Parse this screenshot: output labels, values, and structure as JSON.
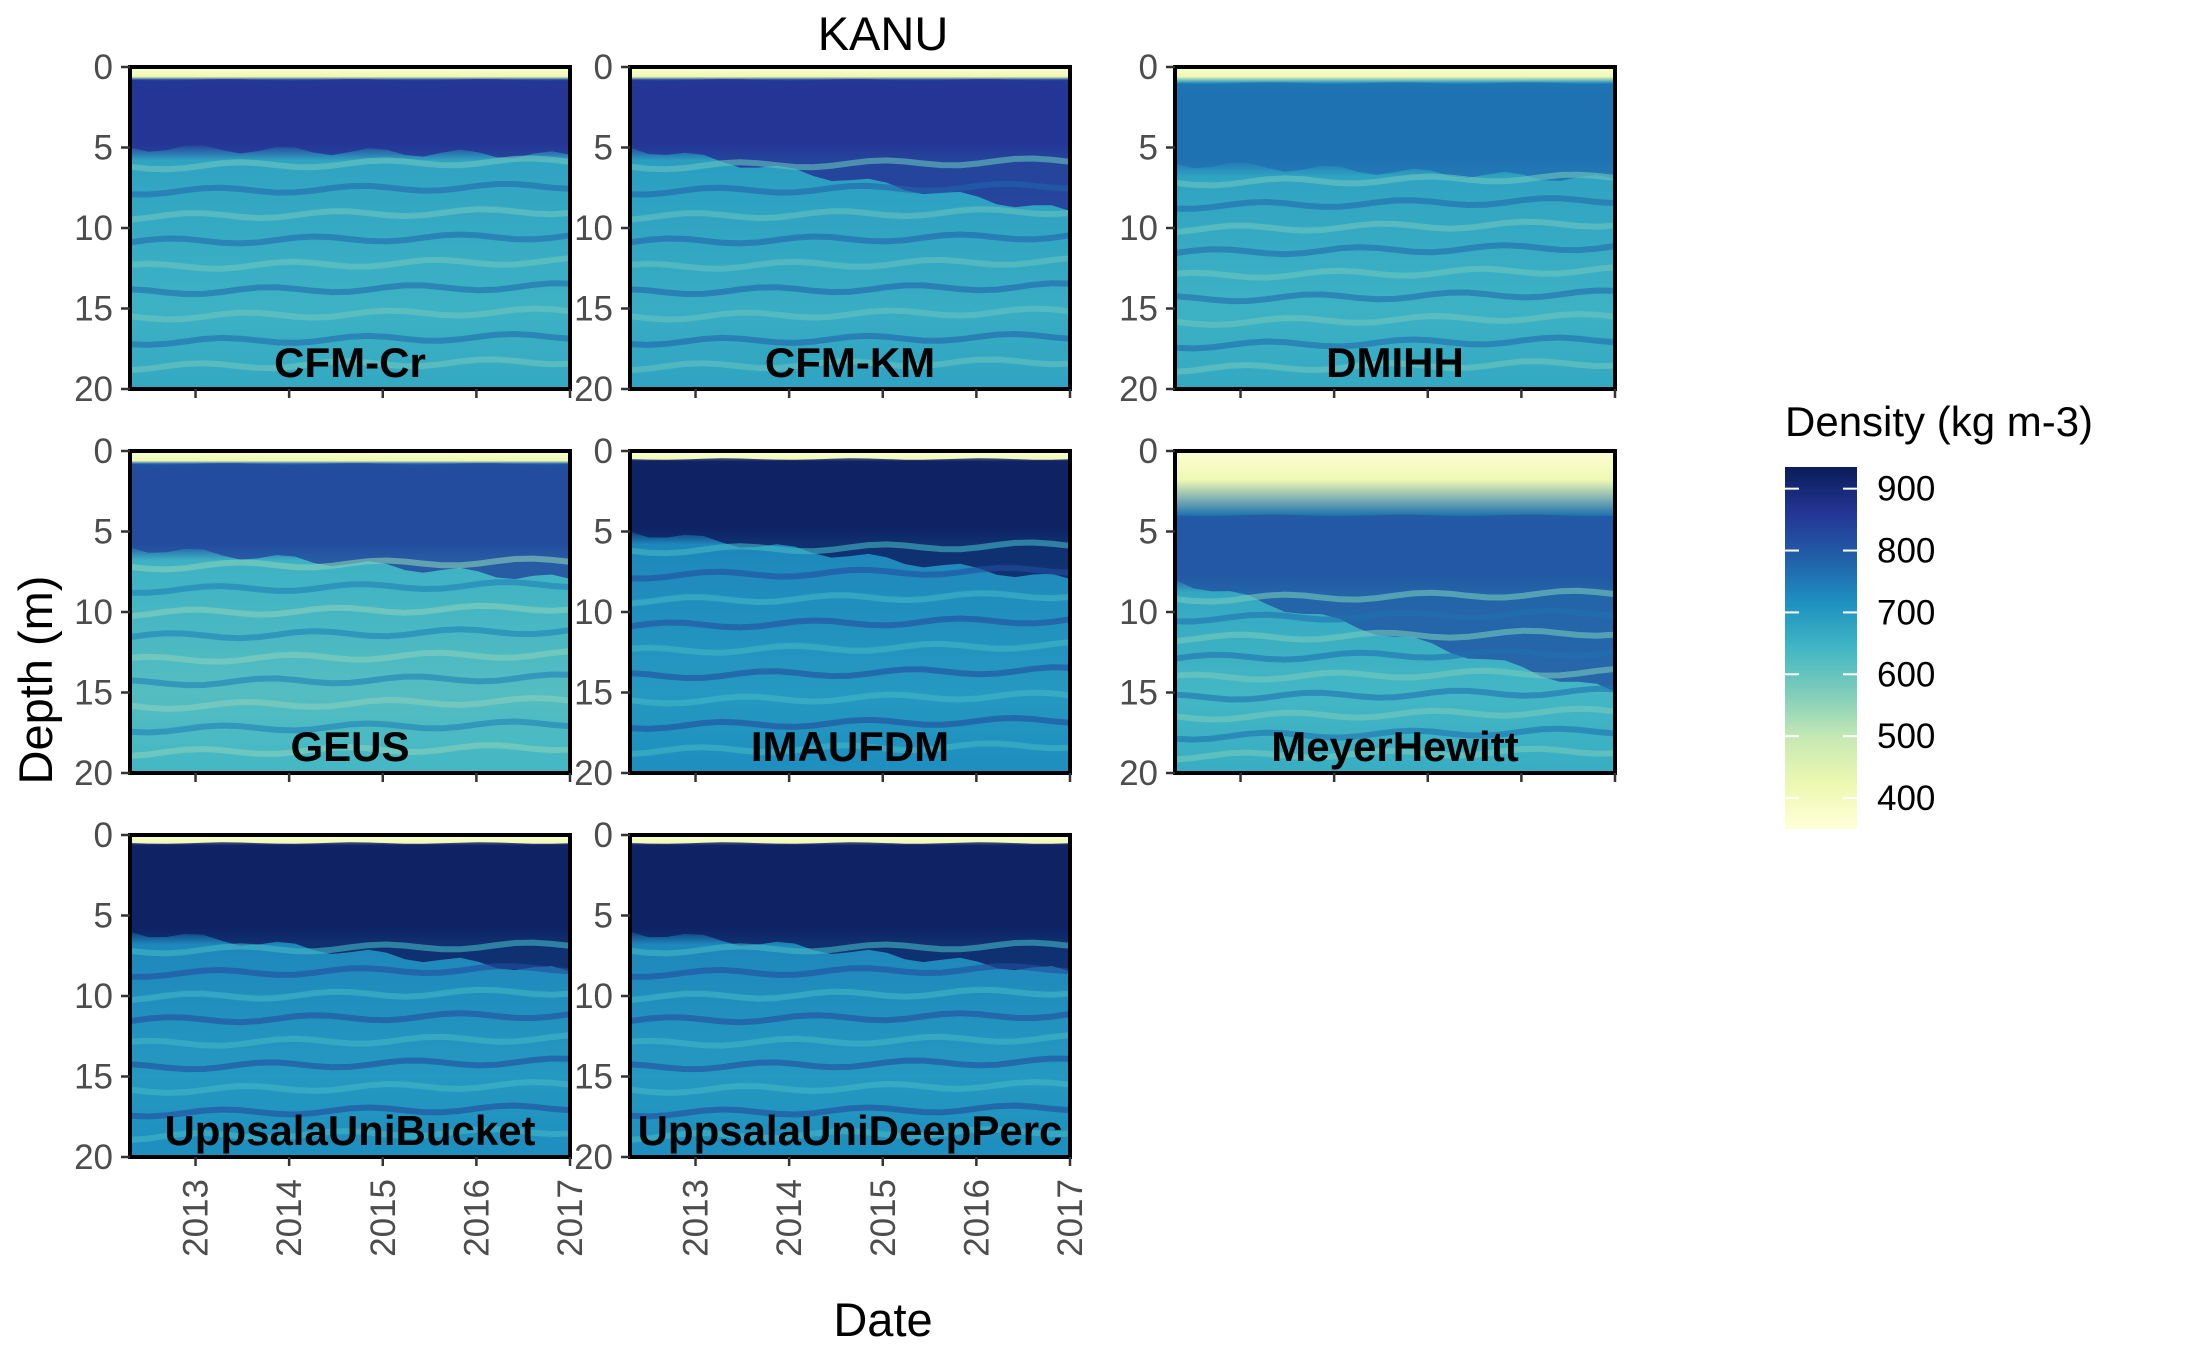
{
  "chart_data": {
    "type": "heatmap",
    "title": "KANU",
    "xlabel": "Date",
    "ylabel": "Depth (m)",
    "x_ticks": [
      "2013",
      "2014",
      "2015",
      "2016",
      "2017"
    ],
    "x_range": [
      2012.3,
      2017.0
    ],
    "y_ticks": [
      "0",
      "5",
      "10",
      "15",
      "20"
    ],
    "y_range": [
      0,
      20
    ],
    "y_reversed": true,
    "legend": {
      "title": "Density (kg m-3)",
      "ticks": [
        "900",
        "800",
        "700",
        "600",
        "500",
        "400"
      ],
      "range": [
        350,
        935
      ],
      "placement": "right",
      "colors": [
        "#ffffd9",
        "#edf8b1",
        "#c7e9b4",
        "#7fcdbb",
        "#41b6c4",
        "#1d91c0",
        "#225ea8",
        "#253494",
        "#081d58"
      ]
    },
    "panels": [
      {
        "name": "CFM-Cr",
        "surface_depth_m": 1.0,
        "dense_top_m": 0.8,
        "dense_bottom_m": [
          5.0,
          5.5
        ],
        "deep_density": 650,
        "upper_density": 860
      },
      {
        "name": "CFM-KM",
        "surface_depth_m": 1.0,
        "dense_top_m": 0.8,
        "dense_bottom_m": [
          5.0,
          9.0
        ],
        "deep_density": 660,
        "upper_density": 860
      },
      {
        "name": "DMIHH",
        "surface_depth_m": 1.0,
        "dense_top_m": 1.0,
        "dense_bottom_m": [
          6.0,
          7.0
        ],
        "deep_density": 650,
        "upper_density": 760
      },
      {
        "name": "GEUS",
        "surface_depth_m": 1.0,
        "dense_top_m": 0.8,
        "dense_bottom_m": [
          6.0,
          8.0
        ],
        "deep_density": 620,
        "upper_density": 820
      },
      {
        "name": "IMAUFDM",
        "surface_depth_m": 1.0,
        "dense_top_m": 0.5,
        "dense_bottom_m": [
          5.0,
          8.0
        ],
        "deep_density": 700,
        "upper_density": 920
      },
      {
        "name": "MeyerHewitt",
        "surface_depth_m": 3.0,
        "dense_top_m": 4.0,
        "dense_bottom_m": [
          8.0,
          15.0
        ],
        "deep_density": 640,
        "upper_density": 800
      },
      {
        "name": "UppsalaUniBucket",
        "surface_depth_m": 1.0,
        "dense_top_m": 0.5,
        "dense_bottom_m": [
          6.0,
          8.5
        ],
        "deep_density": 700,
        "upper_density": 920
      },
      {
        "name": "UppsalaUniDeepPerc",
        "surface_depth_m": 1.0,
        "dense_top_m": 0.5,
        "dense_bottom_m": [
          6.0,
          8.5
        ],
        "deep_density": 700,
        "upper_density": 920
      }
    ]
  }
}
